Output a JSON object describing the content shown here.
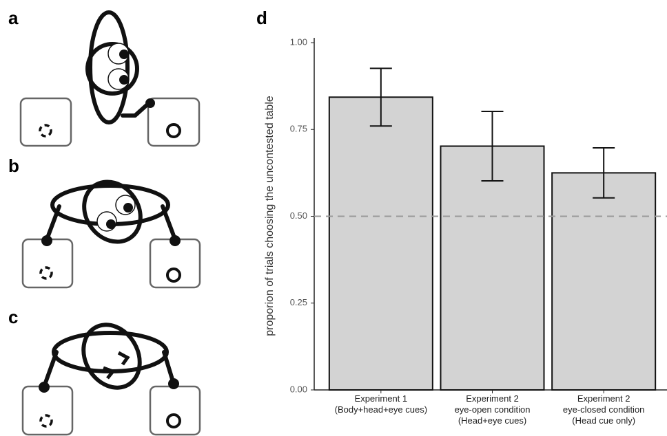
{
  "panel_labels": [
    "a",
    "b",
    "c"
  ],
  "chart_data": {
    "type": "bar",
    "panel_label": "d",
    "ylabel": "proporion of trials choosing the uncontested table",
    "categories": [
      [
        "Experiment 1",
        "(Body+head+eye cues)"
      ],
      [
        "Experiment 2",
        "eye-open condition",
        "(Head+eye cues)"
      ],
      [
        "Experiment 2",
        "eye-closed condition",
        "(Head cue only)"
      ]
    ],
    "values": [
      0.843,
      0.702,
      0.625
    ],
    "errors": [
      0.083,
      0.1,
      0.072
    ],
    "color": "#d3d3d3",
    "ylim": [
      0,
      1
    ],
    "yticks": [
      {
        "value": 0,
        "label": "0.00"
      },
      {
        "value": 0.25,
        "label": "0.25"
      },
      {
        "value": 0.5,
        "label": "0.50"
      },
      {
        "value": 0.75,
        "label": "0.75"
      },
      {
        "value": 1,
        "label": "1.00"
      }
    ],
    "reference_line": 0.5
  }
}
